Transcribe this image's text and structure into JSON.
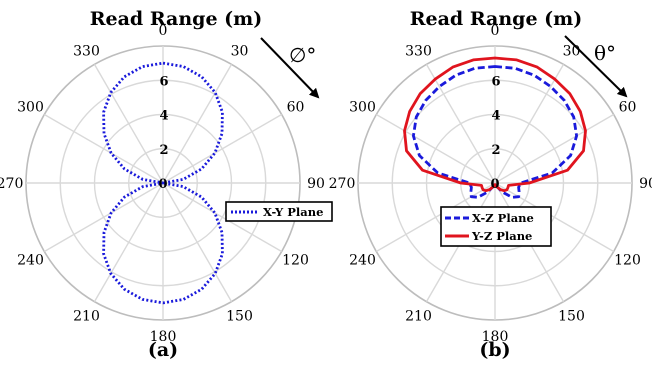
{
  "figure": {
    "subfigure_labels": [
      "(a)",
      "(b)"
    ],
    "arrow_symbols": [
      "∅°",
      "θ°"
    ]
  },
  "chart_data": [
    {
      "type": "polar-line",
      "title": "Read Range (m)",
      "subfigure_label": "(a)",
      "angle_symbol": "∅°",
      "angle_ticks": [
        0,
        30,
        60,
        90,
        120,
        150,
        180,
        210,
        240,
        270,
        300,
        330
      ],
      "radial_ticks": [
        0,
        2,
        4,
        6
      ],
      "rlim": [
        0,
        8
      ],
      "grid": true,
      "legend_position": "right",
      "series": [
        {
          "name": "X-Y Plane",
          "color": "#1a1adb",
          "line_style": "dotted",
          "angles_deg": [
            0,
            10,
            20,
            30,
            40,
            50,
            60,
            70,
            80,
            90,
            100,
            110,
            120,
            130,
            140,
            150,
            160,
            170,
            180,
            190,
            200,
            210,
            220,
            230,
            240,
            250,
            260,
            270,
            280,
            290,
            300,
            310,
            320,
            330,
            340,
            350
          ],
          "values": [
            7.0,
            6.9,
            6.6,
            6.1,
            5.4,
            4.5,
            3.5,
            2.4,
            1.2,
            0.0,
            1.2,
            2.4,
            3.5,
            4.5,
            5.4,
            6.1,
            6.6,
            6.9,
            7.0,
            6.9,
            6.6,
            6.1,
            5.4,
            4.5,
            3.5,
            2.4,
            1.2,
            0.0,
            1.2,
            2.4,
            3.5,
            4.5,
            5.4,
            6.1,
            6.6,
            6.9
          ]
        }
      ]
    },
    {
      "type": "polar-line",
      "title": "Read Range (m)",
      "subfigure_label": "(b)",
      "angle_symbol": "θ°",
      "angle_ticks": [
        0,
        30,
        60,
        90,
        120,
        150,
        180,
        210,
        240,
        270,
        300,
        330
      ],
      "radial_ticks": [
        0,
        2,
        4,
        6
      ],
      "rlim": [
        0,
        8
      ],
      "grid": true,
      "legend_position": "bottom-center",
      "series": [
        {
          "name": "X-Z Plane",
          "color": "#1a1adb",
          "line_style": "dashed",
          "angles_deg": [
            0,
            10,
            20,
            30,
            40,
            50,
            60,
            70,
            80,
            90,
            100,
            110,
            120,
            130,
            140,
            150,
            160,
            170,
            180,
            190,
            200,
            210,
            220,
            230,
            240,
            250,
            260,
            270,
            280,
            290,
            300,
            310,
            320,
            330,
            340,
            350
          ],
          "values": [
            6.8,
            6.8,
            6.7,
            6.5,
            6.3,
            6.0,
            5.5,
            4.7,
            3.4,
            1.5,
            1.4,
            1.5,
            1.6,
            1.3,
            0.7,
            0.3,
            0.1,
            0.1,
            0.1,
            0.1,
            0.1,
            0.3,
            0.7,
            1.3,
            1.6,
            1.5,
            1.4,
            1.5,
            3.4,
            4.7,
            5.5,
            6.0,
            6.3,
            6.5,
            6.7,
            6.8
          ]
        },
        {
          "name": "Y-Z Plane",
          "color": "#e0141e",
          "line_style": "solid",
          "angles_deg": [
            0,
            10,
            20,
            30,
            40,
            50,
            60,
            70,
            80,
            90,
            100,
            110,
            120,
            130,
            140,
            150,
            160,
            170,
            180,
            190,
            200,
            210,
            220,
            230,
            240,
            250,
            260,
            270,
            280,
            290,
            300,
            310,
            320,
            330,
            340,
            350
          ],
          "values": [
            7.3,
            7.3,
            7.2,
            7.0,
            6.8,
            6.5,
            6.1,
            5.5,
            4.3,
            2.0,
            0.8,
            0.8,
            0.8,
            0.7,
            0.5,
            0.3,
            0.2,
            0.1,
            0.1,
            0.1,
            0.2,
            0.3,
            0.5,
            0.7,
            0.8,
            0.8,
            0.8,
            2.0,
            4.3,
            5.5,
            6.1,
            6.5,
            6.8,
            7.0,
            7.2,
            7.3
          ]
        }
      ]
    }
  ]
}
